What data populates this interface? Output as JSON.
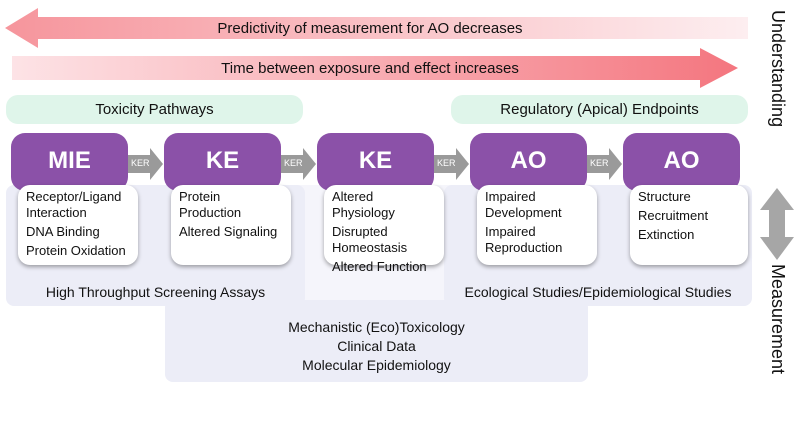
{
  "top_arrows": {
    "predictivity": "Predictivity of measurement for AO decreases",
    "time": "Time between exposure and effect increases"
  },
  "pills": {
    "toxicity_pathways": "Toxicity Pathways",
    "regulatory_endpoints": "Regulatory (Apical) Endpoints"
  },
  "nodes": [
    {
      "title": "MIE",
      "items": [
        "Receptor/Ligand Interaction",
        "DNA Binding",
        "Protein Oxidation"
      ]
    },
    {
      "title": "KE",
      "items": [
        "Protein Production",
        "Altered Signaling"
      ]
    },
    {
      "title": "KE",
      "items": [
        "Altered Physiology",
        "Disrupted Homeostasis",
        "Altered Function"
      ]
    },
    {
      "title": "AO",
      "items": [
        "Impaired Development",
        "Impaired Reproduction"
      ]
    },
    {
      "title": "AO",
      "items": [
        "Structure",
        "Recruitment",
        "Extinction"
      ]
    }
  ],
  "ker_label": "KER",
  "regions": {
    "hts": "High Throughput Screening Assays",
    "eco": "Ecological Studies/Epidemiological Studies",
    "mech": [
      "Mechanistic (Eco)Toxicology",
      "Clinical Data",
      "Molecular Epidemiology"
    ]
  },
  "side": {
    "understanding": "Understanding",
    "measurement": "Measurement"
  },
  "colors": {
    "node_header": "#8b51a8",
    "pill": "#dff5ea",
    "region": "#ecedf7",
    "ker_arrow": "#9a9a9a",
    "top_arrow_light": "#fde3e6",
    "top_arrow_dark": "#f4767f"
  }
}
